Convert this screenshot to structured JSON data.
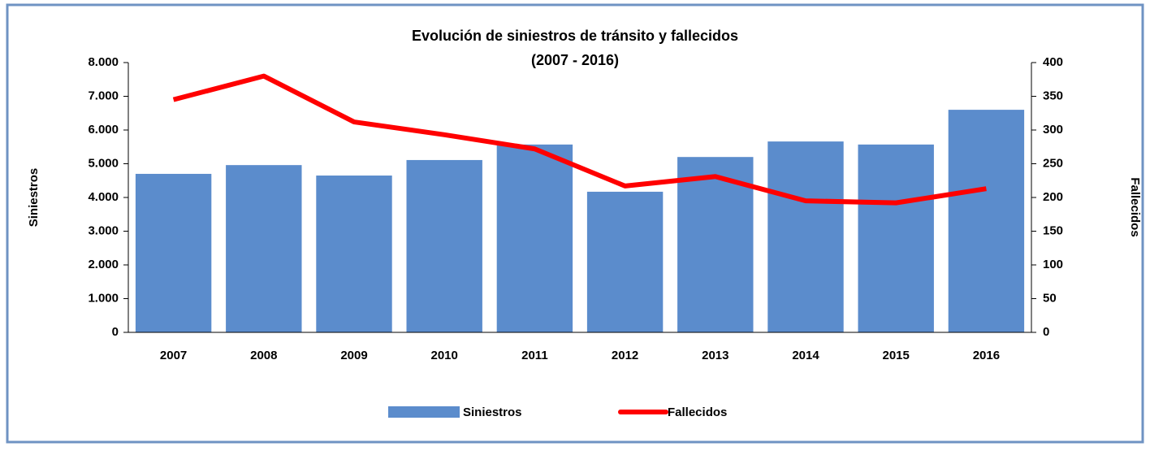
{
  "chart_data": {
    "type": "bar_line",
    "title": "Evolución  de siniestros de tránsito y fallecidos",
    "subtitle": "(2007 - 2016)",
    "y_label": "Siniestros",
    "y2_label": "Fallecidos",
    "categories": [
      "2007",
      "2008",
      "2009",
      "2010",
      "2011",
      "2012",
      "2013",
      "2014",
      "2015",
      "2016"
    ],
    "series": [
      {
        "name": "Siniestros",
        "type": "bar",
        "color": "#5b8ccc",
        "values": [
          4700,
          4960,
          4650,
          5110,
          5570,
          4170,
          5200,
          5660,
          5570,
          6600
        ]
      },
      {
        "name": "Fallecidos",
        "type": "line",
        "axis": "y2",
        "color": "#ff0000",
        "values": [
          345,
          380,
          312,
          293,
          272,
          217,
          231,
          195,
          192,
          213
        ]
      }
    ],
    "ylim": [
      0,
      8000
    ],
    "yticks": [
      0,
      {
        "value": 1000,
        "label": "1.000"
      },
      {
        "value": 2000,
        "label": "2.000"
      },
      {
        "value": 3000,
        "label": "3.000"
      },
      {
        "value": 4000,
        "label": "4.000"
      },
      {
        "value": 5000,
        "label": "5.000"
      },
      {
        "value": 6000,
        "label": "6.000"
      },
      {
        "value": 7000,
        "label": "7.000"
      },
      {
        "value": 8000,
        "label": "8.000"
      }
    ],
    "y2lim": [
      0,
      400
    ],
    "y2ticks": [
      0,
      50,
      100,
      150,
      200,
      250,
      300,
      350,
      400
    ],
    "legend": "bottom"
  }
}
